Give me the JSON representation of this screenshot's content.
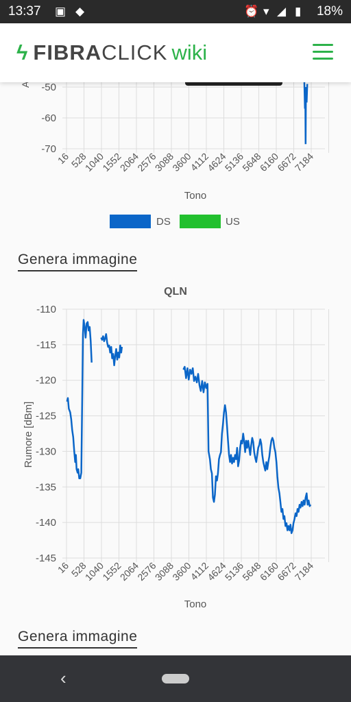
{
  "status_bar": {
    "time": "13:37",
    "icons": [
      "image-icon",
      "app-icon",
      "alarm-icon",
      "wifi-icon",
      "signal-icon",
      "battery-icon"
    ],
    "battery": "18%"
  },
  "header": {
    "brand_fibra": "FIBRA",
    "brand_click": "CLICK",
    "brand_wiki": "wiki",
    "brand_color": "#2db24a"
  },
  "colors": {
    "ds": "#0b66c8",
    "us": "#22c02e"
  },
  "chart_data": [
    {
      "type": "line",
      "title": "",
      "xlabel": "Tono",
      "ylabel": "",
      "y_ticks_visible": [
        -50,
        -60,
        -70
      ],
      "x_ticks": [
        "16",
        "528",
        "1040",
        "1552",
        "2064",
        "2576",
        "3088",
        "3600",
        "4112",
        "4624",
        "5136",
        "5648",
        "6160",
        "6672",
        "7184"
      ],
      "legend_position": "bottom",
      "grid": true,
      "series": [
        {
          "name": "DS",
          "points": [
            [
              7080,
              -47
            ],
            [
              7100,
              -57
            ],
            [
              7110,
              -52
            ],
            [
              7120,
              -68.5
            ],
            [
              7130,
              -50
            ],
            [
              7150,
              -55
            ],
            [
              7170,
              -49
            ]
          ]
        },
        {
          "name": "US",
          "points": []
        }
      ]
    },
    {
      "type": "line",
      "title": "QLN",
      "xlabel": "Tono",
      "ylabel": "Rumore [dBm]",
      "ylim": [
        -145,
        -110
      ],
      "y_ticks": [
        -110,
        -115,
        -120,
        -125,
        -130,
        -135,
        -140,
        -145
      ],
      "x_ticks": [
        "16",
        "528",
        "1040",
        "1552",
        "2064",
        "2576",
        "3088",
        "3600",
        "4112",
        "4624",
        "5136",
        "5648",
        "6160",
        "6672",
        "7184"
      ],
      "grid": true,
      "segments": [
        [
          [
            16,
            -123
          ],
          [
            40,
            -122.5
          ],
          [
            70,
            -124
          ],
          [
            110,
            -124.5
          ],
          [
            140,
            -125.5
          ],
          [
            170,
            -127
          ],
          [
            200,
            -128
          ],
          [
            230,
            -130
          ],
          [
            260,
            -131.5
          ],
          [
            280,
            -130.5
          ],
          [
            300,
            -132.5
          ],
          [
            330,
            -133
          ],
          [
            350,
            -132.5
          ],
          [
            380,
            -133.8
          ],
          [
            410,
            -133.8
          ],
          [
            440,
            -133
          ],
          [
            470,
            -122
          ],
          [
            490,
            -113.5
          ],
          [
            510,
            -111.5
          ],
          [
            540,
            -112.5
          ],
          [
            570,
            -114
          ],
          [
            600,
            -112
          ],
          [
            630,
            -111.8
          ],
          [
            660,
            -113
          ],
          [
            690,
            -112.5
          ],
          [
            720,
            -114.5
          ],
          [
            750,
            -117.5
          ]
        ],
        [
          [
            1030,
            -114
          ],
          [
            1060,
            -114.3
          ],
          [
            1090,
            -113.8
          ],
          [
            1120,
            -114.5
          ],
          [
            1150,
            -114.1
          ],
          [
            1180,
            -113.5
          ],
          [
            1210,
            -114.7
          ],
          [
            1240,
            -115.3
          ],
          [
            1270,
            -115.1
          ],
          [
            1300,
            -116.1
          ],
          [
            1330,
            -115.3
          ],
          [
            1360,
            -116.9
          ],
          [
            1390,
            -116.3
          ],
          [
            1420,
            -117.9
          ],
          [
            1450,
            -116.6
          ],
          [
            1480,
            -115.6
          ],
          [
            1510,
            -117.1
          ],
          [
            1540,
            -116.1
          ],
          [
            1570,
            -116.8
          ],
          [
            1600,
            -115.1
          ],
          [
            1630,
            -116.1
          ],
          [
            1650,
            -115.3
          ]
        ],
        [
          [
            3480,
            -118.5
          ],
          [
            3520,
            -118.1
          ],
          [
            3560,
            -119.7
          ],
          [
            3600,
            -118.3
          ],
          [
            3640,
            -119.9
          ],
          [
            3680,
            -118.5
          ],
          [
            3720,
            -119.1
          ],
          [
            3760,
            -118.3
          ],
          [
            3800,
            -120.1
          ],
          [
            3840,
            -119.5
          ],
          [
            3880,
            -120.3
          ],
          [
            3920,
            -119.1
          ],
          [
            3960,
            -120.7
          ],
          [
            4000,
            -121.5
          ],
          [
            4040,
            -120.1
          ],
          [
            4080,
            -121.7
          ],
          [
            4120,
            -120.3
          ],
          [
            4160,
            -121.1
          ],
          [
            4200,
            -120.5
          ],
          [
            4230,
            -130
          ],
          [
            4270,
            -131.1
          ],
          [
            4300,
            -132.5
          ],
          [
            4330,
            -133.1
          ],
          [
            4360,
            -136.5
          ],
          [
            4390,
            -137.1
          ],
          [
            4420,
            -136.1
          ],
          [
            4450,
            -133.5
          ],
          [
            4480,
            -134.1
          ],
          [
            4510,
            -133.1
          ],
          [
            4540,
            -131.1
          ],
          [
            4570,
            -130.5
          ],
          [
            4600,
            -130.1
          ],
          [
            4630,
            -127.5
          ],
          [
            4660,
            -126.1
          ],
          [
            4690,
            -124.5
          ],
          [
            4720,
            -123.5
          ],
          [
            4750,
            -124.5
          ],
          [
            4780,
            -126.5
          ],
          [
            4810,
            -128.5
          ],
          [
            4840,
            -130.5
          ],
          [
            4870,
            -131.5
          ],
          [
            4900,
            -130.5
          ],
          [
            4930,
            -131.7
          ],
          [
            4960,
            -130.9
          ],
          [
            4990,
            -131.5
          ],
          [
            5020,
            -130.5
          ],
          [
            5050,
            -131.1
          ],
          [
            5080,
            -129.5
          ],
          [
            5110,
            -132.1
          ],
          [
            5140,
            -131.3
          ],
          [
            5170,
            -129.5
          ],
          [
            5200,
            -128.5
          ],
          [
            5230,
            -128.9
          ],
          [
            5260,
            -127.5
          ],
          [
            5290,
            -128.5
          ],
          [
            5320,
            -130.1
          ],
          [
            5350,
            -128.5
          ],
          [
            5380,
            -129.5
          ],
          [
            5410,
            -128.5
          ],
          [
            5440,
            -129.5
          ],
          [
            5470,
            -130.5
          ],
          [
            5500,
            -129.1
          ],
          [
            5530,
            -128.1
          ],
          [
            5560,
            -128.7
          ],
          [
            5590,
            -130.1
          ],
          [
            5620,
            -130.9
          ],
          [
            5650,
            -131.5
          ],
          [
            5680,
            -130.5
          ],
          [
            5710,
            -129.5
          ],
          [
            5740,
            -129.1
          ],
          [
            5770,
            -128.3
          ],
          [
            5800,
            -128.9
          ],
          [
            5830,
            -130.5
          ],
          [
            5860,
            -131.5
          ],
          [
            5890,
            -132.1
          ],
          [
            5920,
            -132.7
          ],
          [
            5950,
            -131.5
          ],
          [
            5980,
            -132.5
          ],
          [
            6010,
            -131.5
          ],
          [
            6040,
            -130.7
          ],
          [
            6070,
            -129.5
          ],
          [
            6100,
            -128.5
          ],
          [
            6130,
            -128.1
          ],
          [
            6160,
            -128.5
          ],
          [
            6190,
            -129.5
          ],
          [
            6220,
            -130.1
          ],
          [
            6250,
            -131.5
          ],
          [
            6280,
            -133.5
          ],
          [
            6310,
            -135.1
          ],
          [
            6340,
            -135.9
          ],
          [
            6370,
            -137.1
          ],
          [
            6400,
            -138.5
          ],
          [
            6430,
            -138.1
          ],
          [
            6460,
            -139.5
          ],
          [
            6490,
            -139.1
          ],
          [
            6520,
            -140.5
          ],
          [
            6550,
            -140.1
          ],
          [
            6580,
            -141.1
          ],
          [
            6610,
            -140.5
          ],
          [
            6640,
            -141.1
          ],
          [
            6670,
            -140.3
          ],
          [
            6700,
            -141.5
          ],
          [
            6730,
            -141.1
          ],
          [
            6760,
            -140.1
          ],
          [
            6790,
            -139.5
          ],
          [
            6820,
            -138.7
          ],
          [
            6850,
            -139.1
          ],
          [
            6880,
            -138.1
          ],
          [
            6910,
            -138.5
          ],
          [
            6940,
            -137.5
          ],
          [
            6970,
            -137.9
          ],
          [
            7000,
            -137.1
          ],
          [
            7030,
            -137.7
          ],
          [
            7060,
            -136.9
          ],
          [
            7090,
            -137.5
          ],
          [
            7120,
            -136.5
          ],
          [
            7150,
            -135.9
          ],
          [
            7180,
            -137.5
          ],
          [
            7210,
            -136.9
          ],
          [
            7240,
            -137.7
          ],
          [
            7270,
            -137.5
          ]
        ]
      ]
    }
  ],
  "main": {
    "gen_link_1": "Genera immagine",
    "gen_link_2": "Genera immagine"
  }
}
